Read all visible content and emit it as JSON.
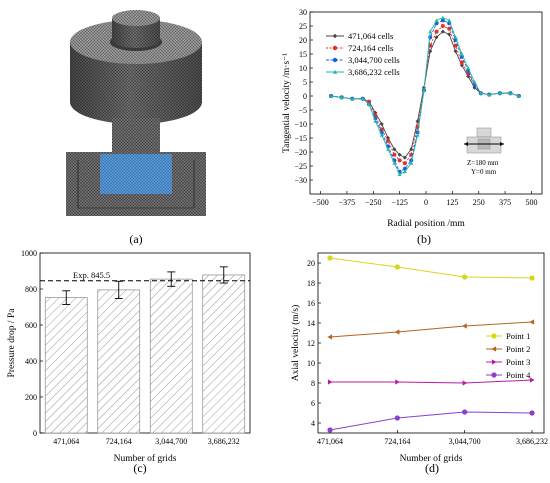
{
  "panels": {
    "a": {
      "label": "(a)"
    },
    "b": {
      "label": "(b)"
    },
    "c": {
      "label": "(c)"
    },
    "d": {
      "label": "(d)"
    }
  },
  "colors": {
    "s1": "#444444",
    "s2": "#e0312a",
    "s3": "#1f5fd8",
    "s4": "#22b8a8",
    "p1": "#d7d719",
    "p2": "#b8621a",
    "p3": "#b51da8",
    "p4": "#8a3fd0",
    "mesh_dark": "#4a4a4a",
    "mesh_mid": "#8c8c8c",
    "mesh_blue": "#4f8fd0"
  },
  "chart_data": [
    {
      "panel": "b",
      "type": "line",
      "xlabel": "Radial position /mm",
      "ylabel": "Tangential velocity /m·s⁻¹",
      "xlim": [
        -550,
        550
      ],
      "ylim": [
        -35,
        30
      ],
      "xticks": [
        -500,
        -375,
        -250,
        -125,
        0,
        125,
        250,
        375,
        500
      ],
      "yticks": [
        -30,
        -25,
        -20,
        -15,
        -10,
        -5,
        0,
        5,
        10,
        15,
        20,
        25,
        30
      ],
      "legend": "top-left",
      "annotation": [
        "Z=180 mm",
        "Y=0 mm"
      ],
      "series": [
        {
          "name": "471,064 cells",
          "marker": "diamond",
          "x": [
            -450,
            -400,
            -350,
            -300,
            -270,
            -240,
            -210,
            -180,
            -150,
            -125,
            -100,
            -70,
            -40,
            -10,
            20,
            50,
            80,
            110,
            140,
            170,
            200,
            230,
            260,
            300,
            350,
            400,
            440
          ],
          "y": [
            0,
            -0.5,
            -1,
            -1,
            -2,
            -6,
            -10,
            -15,
            -19,
            -21,
            -22,
            -19,
            -9,
            3,
            16,
            21,
            23,
            22,
            16,
            11,
            7,
            3,
            1,
            0.5,
            1,
            1,
            0
          ]
        },
        {
          "name": "724,164 cells",
          "marker": "circle",
          "x": [
            -450,
            -400,
            -350,
            -300,
            -270,
            -240,
            -210,
            -180,
            -150,
            -125,
            -100,
            -70,
            -40,
            -10,
            20,
            50,
            80,
            110,
            140,
            170,
            200,
            230,
            260,
            300,
            350,
            400,
            440
          ],
          "y": [
            0,
            -0.5,
            -1,
            -1,
            -2,
            -7,
            -12,
            -16,
            -21,
            -23,
            -24,
            -21,
            -11,
            2,
            18,
            23,
            25,
            24,
            18,
            12,
            8,
            4,
            1,
            0.5,
            1,
            1,
            0
          ]
        },
        {
          "name": "3,044,700 cells",
          "marker": "circle",
          "x": [
            -450,
            -400,
            -350,
            -300,
            -270,
            -240,
            -210,
            -180,
            -150,
            -125,
            -100,
            -70,
            -40,
            -10,
            20,
            50,
            80,
            110,
            140,
            170,
            200,
            230,
            260,
            300,
            350,
            400,
            440
          ],
          "y": [
            0,
            -0.5,
            -1,
            -1,
            -3,
            -8,
            -13,
            -18,
            -23,
            -27,
            -26,
            -23,
            -13,
            2,
            21,
            26,
            27,
            26,
            20,
            14,
            9,
            4,
            1,
            0.5,
            1,
            1,
            0
          ]
        },
        {
          "name": "3,686,232 cells",
          "marker": "triangle",
          "x": [
            -450,
            -400,
            -350,
            -300,
            -270,
            -240,
            -210,
            -180,
            -150,
            -125,
            -100,
            -70,
            -40,
            -10,
            20,
            50,
            80,
            110,
            140,
            170,
            200,
            230,
            260,
            300,
            350,
            400,
            440
          ],
          "y": [
            0,
            -0.5,
            -1,
            -1,
            -3,
            -9,
            -14,
            -19,
            -24,
            -28,
            -27,
            -24,
            -14,
            2,
            23,
            27,
            28,
            27,
            21,
            15,
            10,
            5,
            1,
            0.5,
            1,
            1,
            0
          ]
        }
      ]
    },
    {
      "panel": "c",
      "type": "bar",
      "xlabel": "Number of grids",
      "ylabel": "Pressure drop / Pa",
      "ylim": [
        0,
        1000
      ],
      "yticks": [
        0,
        200,
        400,
        600,
        800,
        1000
      ],
      "categories": [
        "471,064",
        "724,164",
        "3,044,700",
        "3,686,232"
      ],
      "values": [
        752,
        795,
        855,
        878
      ],
      "errors": [
        38,
        48,
        40,
        45
      ],
      "reference": {
        "value": 845.5,
        "label": "Exp. 845.5"
      }
    },
    {
      "panel": "d",
      "type": "line",
      "xlabel": "Number of grids",
      "ylabel": "Axial velocity (m/s)",
      "ylim": [
        3,
        21
      ],
      "yticks": [
        4,
        6,
        8,
        10,
        12,
        14,
        16,
        18,
        20
      ],
      "categories": [
        "471,064",
        "724,164",
        "3,044,700",
        "3,686,232"
      ],
      "legend": "right",
      "series": [
        {
          "name": "Point 1",
          "marker": "circle",
          "values": [
            20.5,
            19.6,
            18.6,
            18.5
          ]
        },
        {
          "name": "Point 2",
          "marker": "triangle-left",
          "values": [
            12.6,
            13.1,
            13.7,
            14.1
          ]
        },
        {
          "name": "Point 3",
          "marker": "triangle-right",
          "values": [
            8.1,
            8.1,
            8.0,
            8.3
          ]
        },
        {
          "name": "Point 4",
          "marker": "circle",
          "values": [
            3.3,
            4.5,
            5.1,
            5.0
          ]
        }
      ]
    }
  ]
}
